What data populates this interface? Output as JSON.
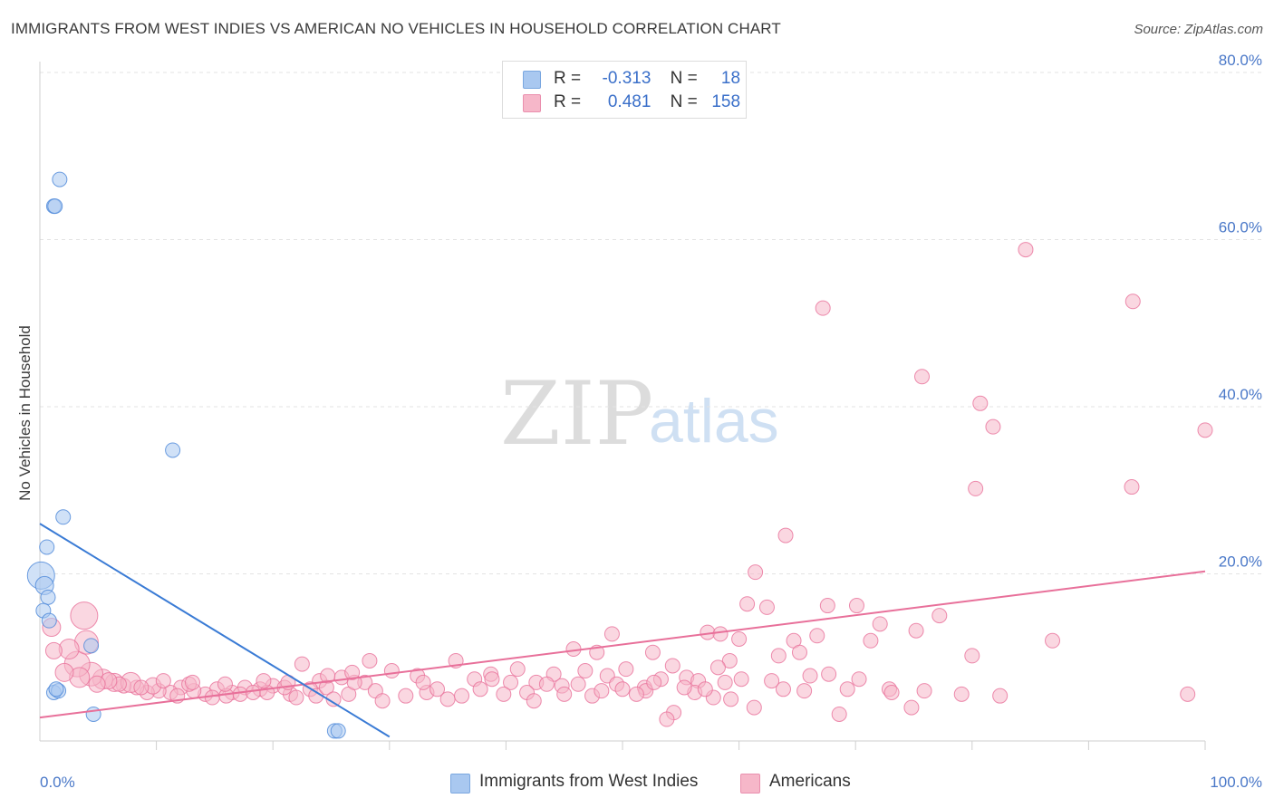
{
  "header": {
    "title": "IMMIGRANTS FROM WEST INDIES VS AMERICAN NO VEHICLES IN HOUSEHOLD CORRELATION CHART",
    "source": "Source: ZipAtlas.com"
  },
  "legend": {
    "rows": [
      {
        "r_label": "R =",
        "r_value": "-0.313",
        "n_label": "N =",
        "n_value": "18",
        "color": "#a9c8f0"
      },
      {
        "r_label": "R =",
        "r_value": "0.481",
        "n_label": "N =",
        "n_value": "158",
        "color": "#f6b7c9"
      }
    ]
  },
  "bottom_legend": {
    "items": [
      {
        "label": "Immigrants from West Indies",
        "color": "#a9c8f0"
      },
      {
        "label": "Americans",
        "color": "#f6b7c9"
      }
    ]
  },
  "watermark": {
    "zip": "ZIP",
    "atlas": "atlas"
  },
  "colors": {
    "blue": "#4a86d8",
    "blue_fill": "#a9c8f0",
    "pink": "#e8709a",
    "pink_fill": "#f6b7c9",
    "tick": "#4a78c8"
  },
  "chart_data": {
    "type": "scatter",
    "ylabel": "No Vehicles in Household",
    "xlabel": "",
    "xlim": [
      0,
      100
    ],
    "ylim": [
      0,
      80
    ],
    "x_tick_labels": [
      "0.0%",
      "100.0%"
    ],
    "y_ticks": [
      20,
      40,
      60,
      80
    ],
    "y_tick_labels": [
      "20.0%",
      "40.0%",
      "60.0%",
      "80.0%"
    ],
    "grid": true,
    "series": [
      {
        "name": "Immigrants from West Indies",
        "points": [
          [
            1.7,
            67.2,
            7
          ],
          [
            1.2,
            64.0,
            7
          ],
          [
            1.3,
            64.0,
            7
          ],
          [
            11.4,
            34.8,
            7
          ],
          [
            2.0,
            26.8,
            7
          ],
          [
            0.6,
            23.2,
            7
          ],
          [
            0.1,
            19.8,
            14
          ],
          [
            0.4,
            18.6,
            9
          ],
          [
            0.7,
            17.2,
            7
          ],
          [
            0.3,
            15.6,
            7
          ],
          [
            0.8,
            14.4,
            7
          ],
          [
            4.4,
            11.4,
            7
          ],
          [
            1.2,
            5.8,
            7
          ],
          [
            1.6,
            6.0,
            7
          ],
          [
            1.4,
            6.2,
            7
          ],
          [
            4.6,
            3.2,
            7
          ],
          [
            25.3,
            1.2,
            7
          ],
          [
            25.6,
            1.2,
            7
          ]
        ],
        "trend": {
          "x": [
            0,
            30
          ],
          "y": [
            26,
            0.5
          ]
        }
      },
      {
        "name": "Americans",
        "points": [
          [
            84.6,
            58.8,
            7
          ],
          [
            67.2,
            51.8,
            7
          ],
          [
            93.8,
            52.6,
            7
          ],
          [
            75.7,
            43.6,
            7
          ],
          [
            80.7,
            40.4,
            7
          ],
          [
            81.8,
            37.6,
            7
          ],
          [
            100.0,
            37.2,
            7
          ],
          [
            80.3,
            30.2,
            7
          ],
          [
            93.7,
            30.4,
            7
          ],
          [
            64.0,
            24.6,
            7
          ],
          [
            61.4,
            20.2,
            7
          ],
          [
            60.7,
            16.4,
            7
          ],
          [
            62.4,
            16.0,
            7
          ],
          [
            67.6,
            16.2,
            7
          ],
          [
            70.1,
            16.2,
            7
          ],
          [
            72.1,
            14.0,
            7
          ],
          [
            77.2,
            15.0,
            7
          ],
          [
            75.2,
            13.2,
            7
          ],
          [
            57.3,
            13.0,
            7
          ],
          [
            58.4,
            12.8,
            7
          ],
          [
            60.0,
            12.2,
            7
          ],
          [
            64.7,
            12.0,
            7
          ],
          [
            66.7,
            12.6,
            7
          ],
          [
            71.3,
            12.0,
            7
          ],
          [
            86.9,
            12.0,
            7
          ],
          [
            49.1,
            12.8,
            7
          ],
          [
            52.6,
            10.6,
            7
          ],
          [
            63.4,
            10.2,
            7
          ],
          [
            65.2,
            10.6,
            7
          ],
          [
            80.0,
            10.2,
            7
          ],
          [
            59.2,
            9.6,
            7
          ],
          [
            58.2,
            8.8,
            7
          ],
          [
            54.3,
            9.0,
            7
          ],
          [
            45.8,
            11.0,
            7
          ],
          [
            47.8,
            10.6,
            7
          ],
          [
            35.7,
            9.6,
            7
          ],
          [
            41.0,
            8.6,
            7
          ],
          [
            44.1,
            8.0,
            7
          ],
          [
            46.8,
            8.4,
            7
          ],
          [
            48.7,
            7.8,
            7
          ],
          [
            50.3,
            8.6,
            7
          ],
          [
            51.9,
            6.4,
            7
          ],
          [
            53.3,
            7.4,
            7
          ],
          [
            55.5,
            7.6,
            7
          ],
          [
            56.5,
            7.2,
            7
          ],
          [
            66.1,
            7.8,
            7
          ],
          [
            22.5,
            9.2,
            7
          ],
          [
            28.3,
            9.6,
            7
          ],
          [
            30.2,
            8.4,
            7
          ],
          [
            32.4,
            7.8,
            7
          ],
          [
            37.3,
            7.4,
            7
          ],
          [
            38.7,
            8.0,
            7
          ],
          [
            40.4,
            7.0,
            7
          ],
          [
            42.6,
            7.0,
            7
          ],
          [
            44.8,
            6.6,
            7
          ],
          [
            46.2,
            6.8,
            7
          ],
          [
            49.5,
            6.8,
            7
          ],
          [
            52.0,
            6.0,
            7
          ],
          [
            56.2,
            5.8,
            7
          ],
          [
            57.8,
            5.2,
            7
          ],
          [
            59.3,
            5.0,
            7
          ],
          [
            63.8,
            6.2,
            7
          ],
          [
            65.6,
            6.0,
            7
          ],
          [
            69.3,
            6.2,
            7
          ],
          [
            72.9,
            6.2,
            7
          ],
          [
            75.9,
            6.0,
            7
          ],
          [
            79.1,
            5.6,
            7
          ],
          [
            82.4,
            5.4,
            7
          ],
          [
            98.5,
            5.6,
            7
          ],
          [
            61.3,
            4.0,
            7
          ],
          [
            68.6,
            3.2,
            7
          ],
          [
            74.8,
            4.0,
            7
          ],
          [
            54.4,
            3.4,
            7
          ],
          [
            53.8,
            2.6,
            7
          ],
          [
            27.9,
            7.0,
            7
          ],
          [
            25.9,
            7.6,
            7
          ],
          [
            24.0,
            7.2,
            7
          ],
          [
            23.2,
            6.2,
            7
          ],
          [
            21.5,
            5.6,
            7
          ],
          [
            20.0,
            6.6,
            7
          ],
          [
            18.9,
            6.2,
            7
          ],
          [
            17.6,
            6.4,
            7
          ],
          [
            16.5,
            5.8,
            7
          ],
          [
            15.2,
            6.2,
            7
          ],
          [
            14.2,
            5.6,
            7
          ],
          [
            13.2,
            6.0,
            7
          ],
          [
            12.1,
            6.4,
            7
          ],
          [
            11.2,
            5.8,
            7
          ],
          [
            10.2,
            6.0,
            7
          ],
          [
            9.2,
            5.8,
            7
          ],
          [
            8.3,
            6.4,
            7
          ],
          [
            7.2,
            6.6,
            7
          ],
          [
            6.4,
            7.0,
            9
          ],
          [
            5.4,
            7.4,
            10
          ],
          [
            4.4,
            8.0,
            12
          ],
          [
            3.2,
            9.2,
            13
          ],
          [
            3.8,
            15.0,
            14
          ],
          [
            4.0,
            11.8,
            12
          ],
          [
            2.5,
            11.0,
            10
          ],
          [
            1.2,
            10.8,
            8
          ],
          [
            1.0,
            13.6,
            9
          ],
          [
            7.8,
            7.0,
            10
          ],
          [
            9.7,
            6.6,
            8
          ],
          [
            11.8,
            5.4,
            7
          ],
          [
            12.8,
            6.8,
            7
          ],
          [
            14.8,
            5.2,
            7
          ],
          [
            16.0,
            5.4,
            7
          ],
          [
            17.2,
            5.6,
            7
          ],
          [
            18.3,
            5.8,
            7
          ],
          [
            19.5,
            5.8,
            7
          ],
          [
            21.0,
            6.4,
            7
          ],
          [
            22.0,
            5.2,
            7
          ],
          [
            23.7,
            5.4,
            7
          ],
          [
            24.6,
            6.4,
            7
          ],
          [
            25.2,
            5.0,
            7
          ],
          [
            26.5,
            5.6,
            7
          ],
          [
            27.0,
            7.0,
            7
          ],
          [
            28.8,
            6.0,
            7
          ],
          [
            29.4,
            4.8,
            7
          ],
          [
            31.4,
            5.4,
            7
          ],
          [
            33.2,
            5.8,
            7
          ],
          [
            34.1,
            6.2,
            7
          ],
          [
            35.0,
            5.0,
            7
          ],
          [
            36.2,
            5.4,
            7
          ],
          [
            37.8,
            6.2,
            7
          ],
          [
            38.8,
            7.4,
            7
          ],
          [
            39.8,
            5.6,
            7
          ],
          [
            41.8,
            5.8,
            7
          ],
          [
            42.4,
            4.8,
            7
          ],
          [
            43.5,
            6.8,
            7
          ],
          [
            45.0,
            5.6,
            7
          ],
          [
            47.4,
            5.4,
            7
          ],
          [
            48.2,
            6.0,
            7
          ],
          [
            50.0,
            6.2,
            7
          ],
          [
            51.2,
            5.6,
            7
          ],
          [
            52.7,
            7.0,
            7
          ],
          [
            55.3,
            6.4,
            7
          ],
          [
            57.1,
            6.2,
            7
          ],
          [
            58.8,
            7.0,
            7
          ],
          [
            60.2,
            7.4,
            7
          ],
          [
            62.8,
            7.2,
            7
          ],
          [
            67.7,
            8.0,
            7
          ],
          [
            70.3,
            7.4,
            7
          ],
          [
            73.1,
            5.8,
            7
          ],
          [
            26.8,
            8.2,
            7
          ],
          [
            24.7,
            7.8,
            7
          ],
          [
            21.3,
            7.0,
            7
          ],
          [
            19.2,
            7.2,
            7
          ],
          [
            13.1,
            7.0,
            7
          ],
          [
            10.6,
            7.2,
            7
          ],
          [
            8.7,
            6.4,
            7
          ],
          [
            6.8,
            6.8,
            7
          ],
          [
            5.9,
            7.2,
            8
          ],
          [
            4.9,
            6.8,
            8
          ],
          [
            3.4,
            7.6,
            10
          ],
          [
            2.1,
            8.2,
            9
          ],
          [
            15.9,
            6.8,
            7
          ],
          [
            32.9,
            7.0,
            7
          ]
        ],
        "trend": {
          "x": [
            0,
            100
          ],
          "y": [
            2.8,
            20.3
          ]
        }
      }
    ]
  }
}
